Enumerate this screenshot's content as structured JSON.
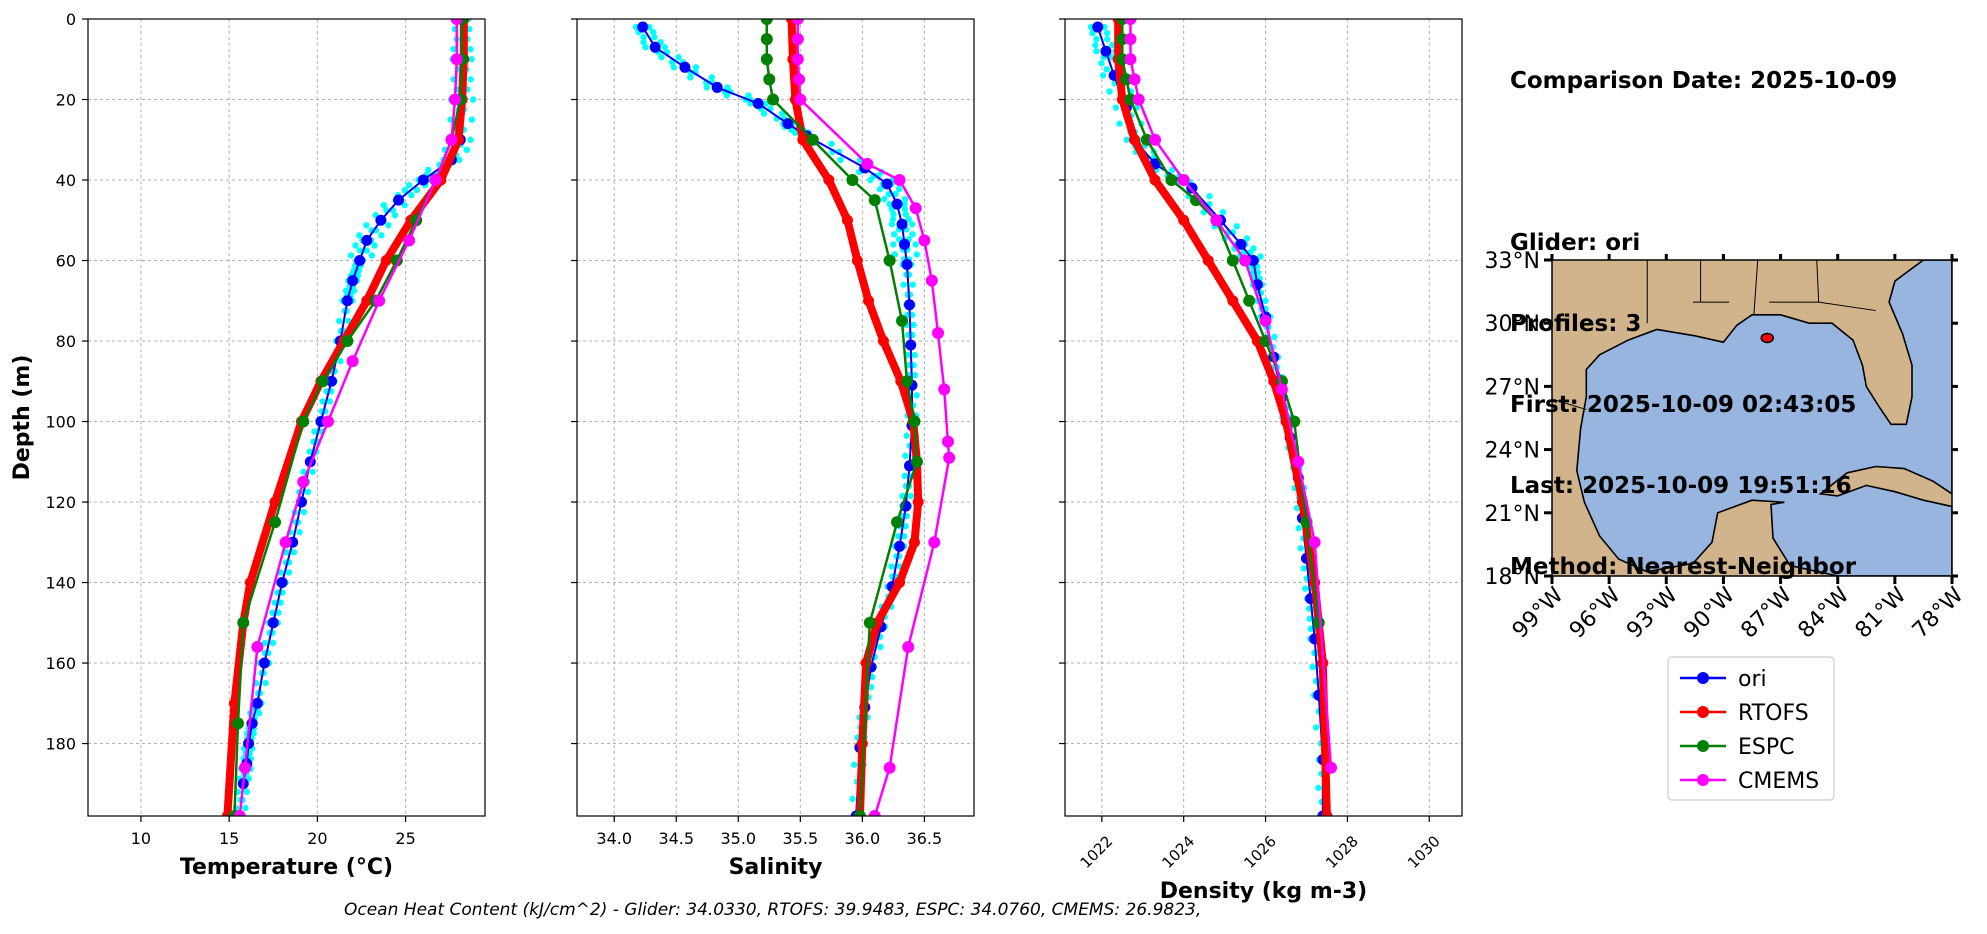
{
  "info": {
    "comparison_date": "Comparison Date: 2025-10-09",
    "glider": "Glider: ori",
    "profiles": "Profiles: 3",
    "first": "First: 2025-10-09 02:43:05",
    "last": "Last: 2025-10-09 19:51:16",
    "method": "Method: Nearest-Neighbor"
  },
  "footer": "Ocean Heat Content (kJ/cm^2) - Glider: 34.0330,  RTOFS: 39.9483,  ESPC: 34.0760,  CMEMS: 26.9823,",
  "colors": {
    "ori": "#0000ff",
    "RTOFS": "#ff0000",
    "ESPC": "#008000",
    "CMEMS": "#ff00ff",
    "raw": "#00ffff",
    "land": "#d2b48c",
    "water": "#98b5e0"
  },
  "chart_data": [
    {
      "type": "line",
      "xlabel": "Temperature (°C)",
      "ylabel": "Depth (m)",
      "xlim": [
        7,
        29.5
      ],
      "ylim": [
        198,
        0
      ],
      "xticks": [
        "10",
        "15",
        "20",
        "25"
      ],
      "yticks": [
        "0",
        "20",
        "40",
        "60",
        "80",
        "100",
        "120",
        "140",
        "160",
        "180"
      ],
      "grid": true,
      "series": [
        {
          "name": "ori",
          "x": [
            28.2,
            28.2,
            28.2,
            28.1,
            27.6,
            26.0,
            24.6,
            23.6,
            22.8,
            22.4,
            22.0,
            21.7,
            21.3,
            20.8,
            20.2,
            19.6,
            19.1,
            18.6,
            18.0,
            17.5,
            17.0,
            16.6,
            16.3,
            16.1,
            16.0,
            15.8,
            15.6
          ],
          "y": [
            0,
            10,
            20,
            30,
            35,
            40,
            45,
            50,
            55,
            60,
            65,
            70,
            80,
            90,
            100,
            110,
            120,
            130,
            140,
            150,
            160,
            170,
            175,
            180,
            185,
            190,
            198
          ]
        },
        {
          "name": "RTOFS",
          "x": [
            28.3,
            28.3,
            28.2,
            28.0,
            27.0,
            25.3,
            23.9,
            22.8,
            21.5,
            20.2,
            19.1,
            17.6,
            16.2,
            15.8,
            15.3,
            14.9
          ],
          "y": [
            0,
            10,
            20,
            30,
            40,
            50,
            60,
            70,
            80,
            90,
            100,
            120,
            140,
            150,
            170,
            198
          ]
        },
        {
          "name": "ESPC",
          "x": [
            28.2,
            28.2,
            28.1,
            27.6,
            26.7,
            25.6,
            24.5,
            23.3,
            21.7,
            20.3,
            19.2,
            17.6,
            15.8,
            15.5,
            15.3
          ],
          "y": [
            0,
            10,
            20,
            30,
            40,
            50,
            60,
            70,
            80,
            90,
            100,
            125,
            150,
            175,
            198
          ]
        },
        {
          "name": "CMEMS",
          "x": [
            27.9,
            27.9,
            27.8,
            27.6,
            26.7,
            25.2,
            23.5,
            22.0,
            20.6,
            19.2,
            18.2,
            16.6,
            15.9,
            15.6
          ],
          "y": [
            0,
            10,
            20,
            30,
            40,
            55,
            70,
            85,
            100,
            115,
            130,
            156,
            186,
            198
          ]
        }
      ]
    },
    {
      "type": "line",
      "xlabel": "Salinity",
      "xlim": [
        33.7,
        36.9
      ],
      "ylim": [
        198,
        0
      ],
      "xticks": [
        "34.0",
        "34.5",
        "35.0",
        "35.5",
        "36.0",
        "36.5"
      ],
      "grid": true,
      "series": [
        {
          "name": "ori",
          "x": [
            34.23,
            34.33,
            34.57,
            34.83,
            35.16,
            35.4,
            35.55,
            36.02,
            36.2,
            36.28,
            36.32,
            36.34,
            36.36,
            36.38,
            36.39,
            36.4,
            36.4,
            36.38,
            36.35,
            36.3,
            36.24,
            36.15,
            36.07,
            36.02,
            35.98,
            35.95
          ],
          "y": [
            2,
            7,
            12,
            17,
            21,
            26,
            29,
            37,
            41,
            46,
            51,
            56,
            61,
            71,
            81,
            91,
            101,
            111,
            121,
            131,
            141,
            151,
            161,
            171,
            181,
            198
          ]
        },
        {
          "name": "RTOFS",
          "x": [
            35.43,
            35.44,
            35.46,
            35.52,
            35.73,
            35.88,
            35.96,
            36.05,
            36.17,
            36.31,
            36.41,
            36.44,
            36.45,
            36.42,
            36.3,
            36.12,
            36.03,
            36.0,
            35.98
          ],
          "y": [
            0,
            10,
            20,
            30,
            40,
            50,
            60,
            70,
            80,
            90,
            100,
            110,
            120,
            130,
            140,
            150,
            160,
            180,
            198
          ]
        },
        {
          "name": "ESPC",
          "x": [
            35.23,
            35.23,
            35.23,
            35.25,
            35.28,
            35.6,
            35.92,
            36.1,
            36.22,
            36.32,
            36.36,
            36.42,
            36.44,
            36.28,
            36.06,
            35.98
          ],
          "y": [
            0,
            5,
            10,
            15,
            20,
            30,
            40,
            45,
            60,
            75,
            90,
            100,
            110,
            125,
            150,
            198
          ]
        },
        {
          "name": "CMEMS",
          "x": [
            35.48,
            35.48,
            35.48,
            35.49,
            35.5,
            36.04,
            36.3,
            36.43,
            36.5,
            36.56,
            36.61,
            36.66,
            36.69,
            36.7,
            36.58,
            36.37,
            36.22,
            36.1
          ],
          "y": [
            0,
            5,
            10,
            15,
            20,
            36,
            40,
            47,
            55,
            65,
            78,
            92,
            105,
            109,
            130,
            156,
            186,
            198
          ]
        }
      ]
    },
    {
      "type": "line",
      "xlabel": "Density (kg m-3)",
      "xlim": [
        1021.1,
        1030.8
      ],
      "ylim": [
        198,
        0
      ],
      "xticks": [
        "1022",
        "1024",
        "1026",
        "1028",
        "1030"
      ],
      "grid": true,
      "series": [
        {
          "name": "ori",
          "x": [
            1021.9,
            1022.1,
            1022.3,
            1022.6,
            1022.8,
            1023.3,
            1024.2,
            1024.9,
            1025.4,
            1025.7,
            1025.8,
            1026.0,
            1026.2,
            1026.4,
            1026.6,
            1026.8,
            1026.9,
            1027.0,
            1027.1,
            1027.2,
            1027.3,
            1027.4,
            1027.4
          ],
          "y": [
            2,
            8,
            14,
            22,
            30,
            36,
            42,
            50,
            56,
            60,
            66,
            74,
            84,
            94,
            104,
            114,
            124,
            134,
            144,
            154,
            168,
            184,
            198
          ]
        },
        {
          "name": "RTOFS",
          "x": [
            1022.4,
            1022.4,
            1022.5,
            1022.8,
            1023.3,
            1024.0,
            1024.6,
            1025.2,
            1025.8,
            1026.2,
            1026.5,
            1026.9,
            1027.2,
            1027.4,
            1027.5
          ],
          "y": [
            0,
            10,
            20,
            30,
            40,
            50,
            60,
            70,
            80,
            90,
            100,
            120,
            140,
            160,
            198
          ]
        },
        {
          "name": "ESPC",
          "x": [
            1022.5,
            1022.5,
            1022.5,
            1022.6,
            1022.7,
            1023.1,
            1023.7,
            1024.3,
            1024.8,
            1025.2,
            1025.6,
            1026.0,
            1026.4,
            1026.7,
            1027.0,
            1027.3
          ],
          "y": [
            0,
            5,
            10,
            15,
            20,
            30,
            40,
            45,
            50,
            60,
            70,
            80,
            90,
            100,
            125,
            150
          ]
        },
        {
          "name": "CMEMS",
          "x": [
            1022.7,
            1022.7,
            1022.7,
            1022.8,
            1022.9,
            1023.3,
            1024.0,
            1024.8,
            1025.5,
            1026.0,
            1026.4,
            1026.8,
            1027.2,
            1027.6
          ],
          "y": [
            0,
            5,
            10,
            15,
            20,
            30,
            40,
            50,
            60,
            75,
            92,
            110,
            130,
            186
          ]
        }
      ]
    }
  ],
  "map": {
    "lon_ticks": [
      "99°W",
      "96°W",
      "93°W",
      "90°W",
      "87°W",
      "84°W",
      "81°W",
      "78°W"
    ],
    "lat_ticks": [
      "33°N",
      "30°N",
      "27°N",
      "24°N",
      "21°N",
      "18°N"
    ],
    "lon_range": [
      -99,
      -78
    ],
    "lat_range": [
      18,
      33
    ],
    "glider_location": [
      -87.7,
      29.3
    ]
  },
  "legend": [
    "ori",
    "RTOFS",
    "ESPC",
    "CMEMS"
  ]
}
